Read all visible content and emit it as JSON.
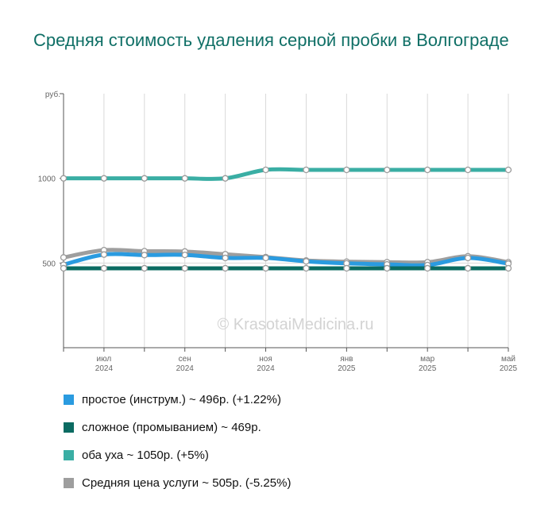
{
  "title": "Средняя стоимость удаления серной пробки в Волгограде",
  "watermark": "© KrasotaiMedicina.ru",
  "chart_data": {
    "type": "line",
    "y_unit": "руб.",
    "y_ticks": [
      500,
      1000
    ],
    "ylim": [
      0,
      1500
    ],
    "x_labels": [
      {
        "month": "июл",
        "year": "2024"
      },
      {
        "month": "сен",
        "year": "2024"
      },
      {
        "month": "ноя",
        "year": "2024"
      },
      {
        "month": "янв",
        "year": "2025"
      },
      {
        "month": "мар",
        "year": "2025"
      },
      {
        "month": "май",
        "year": "2025"
      }
    ],
    "x": [
      "2024-06",
      "2024-07",
      "2024-08",
      "2024-09",
      "2024-10",
      "2024-11",
      "2024-12",
      "2025-01",
      "2025-02",
      "2025-03",
      "2025-04",
      "2025-05"
    ],
    "grid": true,
    "series": [
      {
        "name": "Средняя цена услуги",
        "color": "#9e9e9e",
        "values": [
          533,
          576,
          570,
          568,
          552,
          535,
          515,
          508,
          505,
          505,
          540,
          505
        ]
      },
      {
        "name": "простое (инструм.)",
        "color": "#2a9be0",
        "values": [
          490,
          550,
          547,
          548,
          530,
          530,
          510,
          498,
          492,
          488,
          530,
          496
        ]
      },
      {
        "name": "сложное (промыванием)",
        "color": "#0b6b62",
        "values": [
          469,
          469,
          469,
          469,
          469,
          469,
          469,
          469,
          469,
          469,
          469,
          469
        ]
      },
      {
        "name": "оба уха",
        "color": "#3aaea4",
        "values": [
          1000,
          1000,
          1000,
          1000,
          1000,
          1050,
          1050,
          1050,
          1050,
          1050,
          1050,
          1050
        ]
      }
    ]
  },
  "legend": [
    {
      "text": "простое (инструм.) ~ 496р. (+1.22%)",
      "color": "#2a9be0"
    },
    {
      "text": "сложное (промыванием) ~ 469р.",
      "color": "#0b6b62"
    },
    {
      "text": "оба уха ~ 1050р. (+5%)",
      "color": "#3aaea4"
    },
    {
      "text": "Средняя цена услуги ~ 505р. (-5.25%)",
      "color": "#9e9e9e"
    }
  ]
}
